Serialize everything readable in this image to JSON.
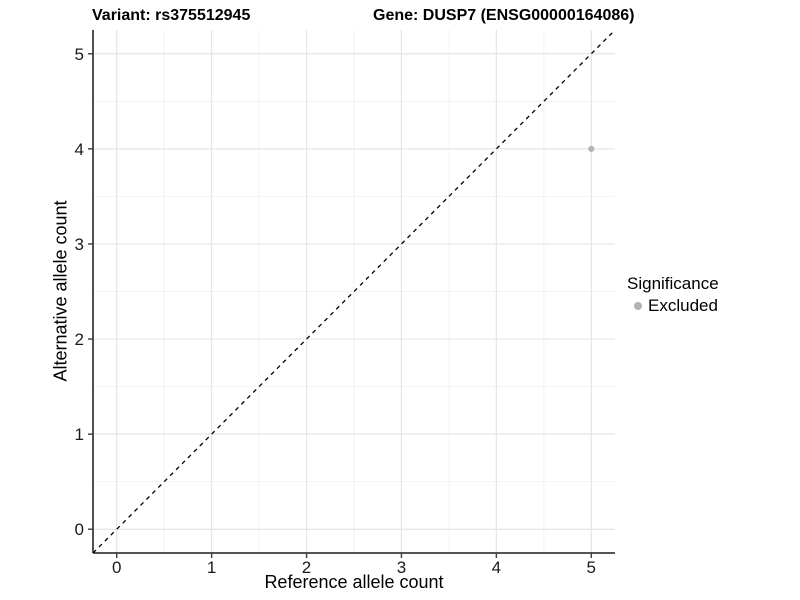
{
  "titles": {
    "left": "Variant: rs375512945",
    "right": "Gene: DUSP7 (ENSG00000164086)"
  },
  "chart_data": {
    "type": "scatter",
    "title": "Variant: rs375512945   Gene: DUSP7 (ENSG00000164086)",
    "xlabel": "Reference allele count",
    "ylabel": "Alternative allele count",
    "xlim": [
      -0.25,
      5.25
    ],
    "ylim": [
      -0.25,
      5.25
    ],
    "x_ticks": [
      0,
      1,
      2,
      3,
      4,
      5
    ],
    "y_ticks": [
      0,
      1,
      2,
      3,
      4,
      5
    ],
    "x_minor_ticks": [
      0.5,
      1.5,
      2.5,
      3.5,
      4.5
    ],
    "y_minor_ticks": [
      0.5,
      1.5,
      2.5,
      3.5,
      4.5
    ],
    "grid": true,
    "points": [
      {
        "x": 5,
        "y": 4,
        "series": "Excluded"
      }
    ],
    "identity_line": {
      "style": "dashed",
      "from": [
        -0.25,
        -0.25
      ],
      "to": [
        5.25,
        5.25
      ],
      "color": "#000000"
    },
    "legend": {
      "title": "Significance",
      "position": "right",
      "items": [
        {
          "label": "Excluded",
          "color": "#b3b3b3"
        }
      ]
    },
    "colors": {
      "excluded_point": "#b3b3b3",
      "grid_major": "#e5e5e5",
      "grid_minor": "#f2f2f2",
      "axis_line": "#3d3d3d",
      "tick_text": "#1a1a1a"
    }
  }
}
